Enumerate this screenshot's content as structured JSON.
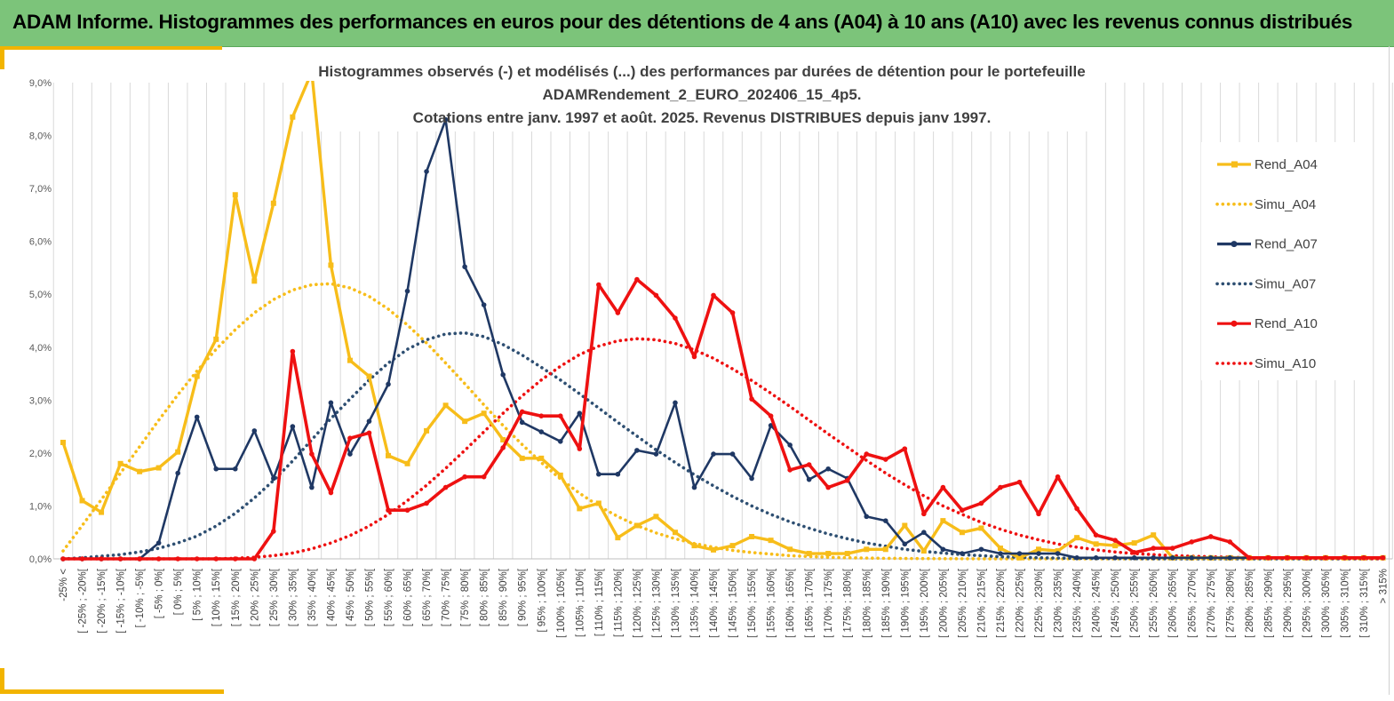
{
  "banner": {
    "title": "ADAM Informe. Histogrammes des performances en euros pour des détentions de 4 ans (A04) à 10 ans (A10) avec les revenus connus distribués"
  },
  "colors": {
    "banner_bg": "#7cc47a",
    "accent_yellow": "#f2b400",
    "A04": "#f7bd1a",
    "A07": "#1f3864",
    "A07_sim": "#2e4f72",
    "A10": "#ee1111"
  },
  "chart_data": {
    "type": "line",
    "title_lines": [
      "Histogrammes observés (-) et modélisés (...) des performances par durées de détention pour le portefeuille",
      "ADAMRendement_2_EURO_202406_15_4p5.",
      "Cotations entre janv. 1997 et août. 2025. Revenus DISTRIBUES depuis janv 1997."
    ],
    "ylim": [
      0,
      9
    ],
    "y_ticks": [
      "0,0%",
      "1,0%",
      "2,0%",
      "3,0%",
      "4,0%",
      "5,0%",
      "6,0%",
      "7,0%",
      "8,0%",
      "9,0%"
    ],
    "y_unit": "%",
    "grid": "vertical",
    "legend_position": "right",
    "categories": [
      "-25% <",
      "[ -25% ; -20%[",
      "[ -20% ; -15%[",
      "[ -15% ; -10%[",
      "[ -10% ; -5%[",
      "[ -5% ; 0%[",
      "[ 0% ; 5%[",
      "[ 5% ; 10%[",
      "[ 10% ; 15%[",
      "[ 15% ; 20%[",
      "[ 20% ; 25%[",
      "[ 25% ; 30%[",
      "[ 30% ; 35%[",
      "[ 35% ; 40%[",
      "[ 40% ; 45%[",
      "[ 45% ; 50%[",
      "[ 50% ; 55%[",
      "[ 55% ; 60%[",
      "[ 60% ; 65%[",
      "[ 65% ; 70%[",
      "[ 70% ; 75%[",
      "[ 75% ; 80%[",
      "[ 80% ; 85%[",
      "[ 85% ; 90%[",
      "[ 90% ; 95%[",
      "[ 95% ; 100%[",
      "[ 100% ; 105%[",
      "[ 105% ; 110%[",
      "[ 110% ; 115%[",
      "[ 115% ; 120%[",
      "[ 120% ; 125%[",
      "[ 125% ; 130%[",
      "[ 130% ; 135%[",
      "[ 135% ; 140%[",
      "[ 140% ; 145%[",
      "[ 145% ; 150%[",
      "[ 150% ; 155%[",
      "[ 155% ; 160%[",
      "[ 160% ; 165%[",
      "[ 165% ; 170%[",
      "[ 170% ; 175%[",
      "[ 175% ; 180%[",
      "[ 180% ; 185%[",
      "[ 185% ; 190%[",
      "[ 190% ; 195%[",
      "[ 195% ; 200%[",
      "[ 200% ; 205%[",
      "[ 205% ; 210%[",
      "[ 210% ; 215%[",
      "[ 215% ; 220%[",
      "[ 220% ; 225%[",
      "[ 225% ; 230%[",
      "[ 230% ; 235%[",
      "[ 235% ; 240%[",
      "[ 240% ; 245%[",
      "[ 245% ; 250%[",
      "[ 250% ; 255%[",
      "[ 255% ; 260%[",
      "[ 260% ; 265%[",
      "[ 265% ; 270%[",
      "[ 270% ; 275%[",
      "[ 275% ; 280%[",
      "[ 280% ; 285%[",
      "[ 285% ; 290%[",
      "[ 290% ; 295%[",
      "[ 295% ; 300%[",
      "[ 300% ; 305%[",
      "[ 305% ; 310%[",
      "[ 310% ; 315%[",
      "> 315%"
    ],
    "series": [
      {
        "name": "Rend_A04",
        "style": "solid",
        "marker": "square",
        "color": "#f7bd1a",
        "values": [
          2.2,
          1.1,
          0.88,
          1.8,
          1.65,
          1.72,
          2.02,
          3.45,
          4.15,
          6.88,
          5.25,
          6.72,
          8.35,
          9.2,
          5.55,
          3.75,
          3.45,
          1.95,
          1.8,
          2.42,
          2.9,
          2.6,
          2.75,
          2.25,
          1.9,
          1.9,
          1.58,
          0.95,
          1.05,
          0.4,
          0.63,
          0.8,
          0.5,
          0.25,
          0.17,
          0.25,
          0.42,
          0.35,
          0.18,
          0.1,
          0.1,
          0.1,
          0.18,
          0.18,
          0.63,
          0.15,
          0.72,
          0.5,
          0.58,
          0.2,
          0.02,
          0.18,
          0.15,
          0.4,
          0.28,
          0.25,
          0.3,
          0.45,
          0.02,
          0.02,
          0.02,
          0.02,
          0.02,
          0.02,
          0.02,
          0.02,
          0.02,
          0.02,
          0.02,
          0.02
        ]
      },
      {
        "name": "Simu_A04",
        "style": "dotted",
        "color": "#f7bd1a",
        "values": [
          0.15,
          0.63,
          1.12,
          1.62,
          2.12,
          2.62,
          3.1,
          3.55,
          3.96,
          4.33,
          4.65,
          4.9,
          5.08,
          5.18,
          5.2,
          5.12,
          4.96,
          4.72,
          4.42,
          4.08,
          3.7,
          3.31,
          2.91,
          2.52,
          2.16,
          1.82,
          1.51,
          1.24,
          1.0,
          0.8,
          0.63,
          0.49,
          0.38,
          0.29,
          0.22,
          0.16,
          0.12,
          0.09,
          0.06,
          0.045,
          0.03,
          0.02,
          0.015,
          0.01,
          0.007,
          0.005,
          0.003,
          0.002,
          0.001,
          0.001,
          0,
          0,
          0,
          0,
          0,
          0,
          0,
          0,
          0,
          0,
          0,
          0,
          0,
          0,
          0,
          0,
          0,
          0,
          0,
          0
        ]
      },
      {
        "name": "Rend_A07",
        "style": "solid",
        "marker": "circle",
        "color": "#1f3864",
        "values": [
          0,
          0,
          0,
          0,
          0,
          0.3,
          1.62,
          2.68,
          1.7,
          1.7,
          2.42,
          1.52,
          2.5,
          1.35,
          2.95,
          1.98,
          2.6,
          3.3,
          5.06,
          7.32,
          8.3,
          5.52,
          4.8,
          3.48,
          2.58,
          2.4,
          2.22,
          2.75,
          1.6,
          1.6,
          2.05,
          1.98,
          2.95,
          1.35,
          1.98,
          1.98,
          1.52,
          2.52,
          2.15,
          1.5,
          1.7,
          1.52,
          0.8,
          0.72,
          0.28,
          0.5,
          0.18,
          0.1,
          0.18,
          0.1,
          0.1,
          0.1,
          0.1,
          0.02,
          0.02,
          0.02,
          0.02,
          0.02,
          0.02,
          0.02,
          0.02,
          0.02,
          0.02,
          0.02,
          0.02,
          0.02,
          0.02,
          0.02,
          0.02,
          0.02
        ]
      },
      {
        "name": "Simu_A07",
        "style": "dotted",
        "color": "#2e4f72",
        "values": [
          0,
          0.02,
          0.05,
          0.08,
          0.13,
          0.2,
          0.3,
          0.43,
          0.62,
          0.86,
          1.15,
          1.48,
          1.85,
          2.25,
          2.65,
          3.02,
          3.38,
          3.7,
          3.96,
          4.14,
          4.25,
          4.27,
          4.2,
          4.05,
          3.85,
          3.62,
          3.38,
          3.12,
          2.85,
          2.58,
          2.32,
          2.06,
          1.82,
          1.59,
          1.38,
          1.18,
          1.0,
          0.84,
          0.7,
          0.58,
          0.47,
          0.38,
          0.3,
          0.24,
          0.18,
          0.14,
          0.11,
          0.08,
          0.06,
          0.04,
          0.03,
          0.02,
          0.015,
          0.01,
          0.007,
          0.005,
          0.003,
          0.002,
          0.001,
          0,
          0,
          0,
          0,
          0,
          0,
          0,
          0,
          0,
          0,
          0
        ]
      },
      {
        "name": "Rend_A10",
        "style": "solid",
        "marker": "circle",
        "color": "#ee1111",
        "values": [
          0,
          0,
          0,
          0,
          0,
          0,
          0,
          0,
          0,
          0,
          0,
          0.52,
          3.92,
          1.98,
          1.25,
          2.28,
          2.38,
          0.92,
          0.92,
          1.05,
          1.35,
          1.55,
          1.55,
          2.1,
          2.78,
          2.7,
          2.7,
          2.08,
          5.18,
          4.65,
          5.28,
          4.98,
          4.55,
          3.82,
          4.98,
          4.65,
          3.02,
          2.7,
          1.68,
          1.78,
          1.35,
          1.48,
          1.98,
          1.88,
          2.08,
          0.85,
          1.35,
          0.92,
          1.05,
          1.35,
          1.45,
          0.85,
          1.55,
          0.95,
          0.45,
          0.35,
          0.12,
          0.2,
          0.2,
          0.32,
          0.42,
          0.32,
          0.02,
          0.02,
          0.02,
          0.02,
          0.02,
          0.02,
          0.02,
          0.02
        ]
      },
      {
        "name": "Simu_A10",
        "style": "dotted",
        "color": "#ee1111",
        "values": [
          0,
          0,
          0,
          0,
          0,
          0,
          0,
          0,
          0,
          0.01,
          0.03,
          0.06,
          0.11,
          0.19,
          0.3,
          0.44,
          0.62,
          0.84,
          1.1,
          1.39,
          1.71,
          2.05,
          2.4,
          2.75,
          3.08,
          3.38,
          3.64,
          3.86,
          4.02,
          4.12,
          4.16,
          4.14,
          4.07,
          3.95,
          3.79,
          3.59,
          3.37,
          3.13,
          2.88,
          2.62,
          2.36,
          2.11,
          1.86,
          1.62,
          1.4,
          1.19,
          1.0,
          0.84,
          0.69,
          0.56,
          0.45,
          0.36,
          0.28,
          0.22,
          0.17,
          0.13,
          0.1,
          0.08,
          0.06,
          0.05,
          0.04,
          0.03,
          0.02,
          0.02,
          0.015,
          0.01,
          0.01,
          0.008,
          0.005,
          0.005
        ]
      }
    ]
  }
}
